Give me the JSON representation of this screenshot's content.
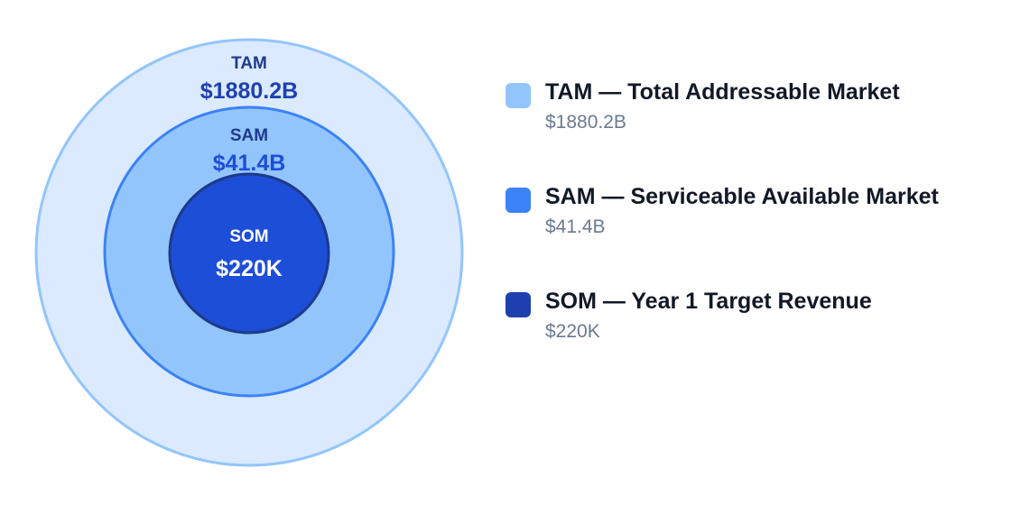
{
  "chart_data": {
    "type": "nested-circles",
    "title": "",
    "tiers": [
      {
        "key": "tam",
        "label": "TAM",
        "value_label": "$1880.2B",
        "value": 1880200000000,
        "legend_title": "TAM — Total Addressable Market",
        "fill": "#dbeafe",
        "stroke": "#93c5fd",
        "label_color": "#1e3a8a",
        "value_color": "#1e40af"
      },
      {
        "key": "sam",
        "label": "SAM",
        "value_label": "$41.4B",
        "value": 41400000000,
        "legend_title": "SAM — Serviceable Available Market",
        "fill": "#93c5fd",
        "stroke": "#3b82f6",
        "label_color": "#1e3a8a",
        "value_color": "#1d4ed8"
      },
      {
        "key": "som",
        "label": "SOM",
        "value_label": "$220K",
        "value": 220000,
        "legend_title": "SOM — Year 1 Target Revenue",
        "fill": "#1d4ed8",
        "stroke": "#1e3a8a",
        "label_color": "#ffffff",
        "value_color": "#ffffff"
      }
    ],
    "legend_position": "right"
  },
  "legend_swatch_colors": [
    "#93c5fd",
    "#3b82f6",
    "#1e40af"
  ]
}
